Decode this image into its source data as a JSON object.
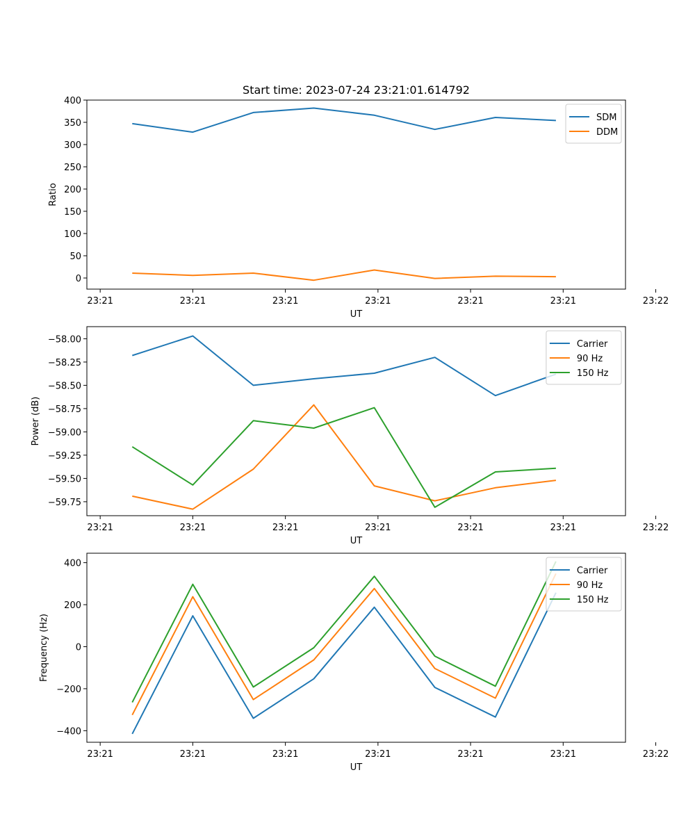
{
  "figure_title": "Start time: 2023-07-24 23:21:01.614792",
  "colors": {
    "blue": "#1f77b4",
    "orange": "#ff7f0e",
    "green": "#2ca02c"
  },
  "chart_data": [
    {
      "type": "line",
      "title": "Start time: 2023-07-24 23:21:01.614792",
      "xlabel": "UT",
      "ylabel": "Ratio",
      "x": [
        1,
        2,
        3,
        4,
        5,
        6,
        7,
        8
      ],
      "xlim": [
        0.25,
        9.15
      ],
      "x_ticks": [
        0.47,
        2.0,
        3.53,
        5.06,
        6.59,
        8.12,
        9.65
      ],
      "x_tick_labels": [
        "23:21",
        "23:21",
        "23:21",
        "23:21",
        "23:21",
        "23:21",
        "23:22"
      ],
      "ylim": [
        -25,
        400
      ],
      "y_ticks": [
        0,
        50,
        100,
        150,
        200,
        250,
        300,
        350,
        400
      ],
      "y_tick_labels": [
        "0",
        "50",
        "100",
        "150",
        "200",
        "250",
        "300",
        "350",
        "400"
      ],
      "legend": "top-right",
      "series": [
        {
          "name": "SDM",
          "color": "#1f77b4",
          "values": [
            347,
            328,
            372,
            382,
            366,
            334,
            361,
            354
          ]
        },
        {
          "name": "DDM",
          "color": "#ff7f0e",
          "values": [
            11,
            6,
            11,
            -5,
            18,
            -1,
            4,
            3
          ]
        }
      ]
    },
    {
      "type": "line",
      "title": "",
      "xlabel": "UT",
      "ylabel": "Power (dB)",
      "x": [
        1,
        2,
        3,
        4,
        5,
        6,
        7,
        8
      ],
      "xlim": [
        0.25,
        9.15
      ],
      "x_ticks": [
        0.47,
        2.0,
        3.53,
        5.06,
        6.59,
        8.12,
        9.65
      ],
      "x_tick_labels": [
        "23:21",
        "23:21",
        "23:21",
        "23:21",
        "23:21",
        "23:21",
        "23:22"
      ],
      "ylim": [
        -59.9,
        -57.87
      ],
      "y_ticks": [
        -58.0,
        -58.25,
        -58.5,
        -58.75,
        -59.0,
        -59.25,
        -59.5,
        -59.75
      ],
      "y_tick_labels": [
        "−58.00",
        "−58.25",
        "−58.50",
        "−58.75",
        "−59.00",
        "−59.25",
        "−59.50",
        "−59.75"
      ],
      "legend": "top-right",
      "series": [
        {
          "name": "Carrier",
          "color": "#1f77b4",
          "values": [
            -58.18,
            -57.97,
            -58.5,
            -58.43,
            -58.37,
            -58.2,
            -58.61,
            -58.38
          ]
        },
        {
          "name": "90 Hz",
          "color": "#ff7f0e",
          "values": [
            -59.69,
            -59.83,
            -59.4,
            -58.71,
            -59.58,
            -59.74,
            -59.6,
            -59.52
          ]
        },
        {
          "name": "150 Hz",
          "color": "#2ca02c",
          "values": [
            -59.16,
            -59.57,
            -58.88,
            -58.96,
            -58.74,
            -59.81,
            -59.43,
            -59.39
          ]
        }
      ]
    },
    {
      "type": "line",
      "title": "",
      "xlabel": "UT",
      "ylabel": "Frequency (Hz)",
      "x": [
        1,
        2,
        3,
        4,
        5,
        6,
        7,
        8
      ],
      "xlim": [
        0.25,
        9.15
      ],
      "x_ticks": [
        0.47,
        2.0,
        3.53,
        5.06,
        6.59,
        8.12,
        9.65
      ],
      "x_tick_labels": [
        "23:21",
        "23:21",
        "23:21",
        "23:21",
        "23:21",
        "23:21",
        "23:22"
      ],
      "ylim": [
        -455,
        445
      ],
      "y_ticks": [
        -400,
        -200,
        0,
        200,
        400
      ],
      "y_tick_labels": [
        "−400",
        "−200",
        "0",
        "200",
        "400"
      ],
      "legend": "top-right",
      "series": [
        {
          "name": "Carrier",
          "color": "#1f77b4",
          "values": [
            -415,
            147,
            -341,
            -153,
            188,
            -194,
            -335,
            257
          ]
        },
        {
          "name": "90 Hz",
          "color": "#ff7f0e",
          "values": [
            -325,
            238,
            -252,
            -63,
            277,
            -104,
            -245,
            348
          ]
        },
        {
          "name": "150 Hz",
          "color": "#2ca02c",
          "values": [
            -265,
            297,
            -192,
            -5,
            335,
            -45,
            -188,
            406
          ]
        }
      ]
    }
  ]
}
